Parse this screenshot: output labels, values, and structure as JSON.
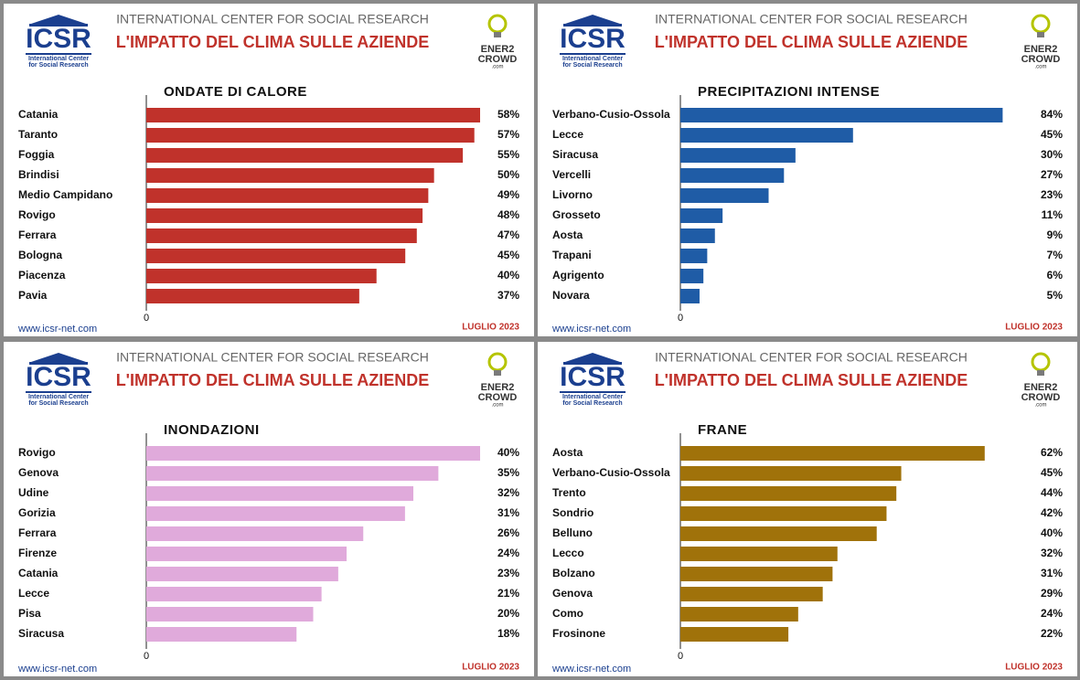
{
  "chart_data": [
    {
      "type": "barh",
      "organization": "INTERNATIONAL CENTER FOR SOCIAL RESEARCH",
      "title": "L'IMPATTO DEL CLIMA SULLE AZIENDE",
      "subtitle": "ONDATE DI CALORE",
      "logo_left": {
        "name": "ICSR",
        "line1": "International Center",
        "line2": "for Social Research"
      },
      "logo_right": {
        "line1": "ENER2",
        "line2": "CROWD",
        "line3": ".com"
      },
      "website": "www.icsr-net.com",
      "date": "LUGLIO 2023",
      "color": "#c0322b",
      "categories": [
        "Catania",
        "Taranto",
        "Foggia",
        "Brindisi",
        "Medio Campidano",
        "Rovigo",
        "Ferrara",
        "Bologna",
        "Piacenza",
        "Pavia"
      ],
      "values": [
        58,
        57,
        55,
        50,
        49,
        48,
        47,
        45,
        40,
        37
      ],
      "value_labels": [
        "58%",
        "57%",
        "55%",
        "50%",
        "49%",
        "48%",
        "47%",
        "45%",
        "40%",
        "37%"
      ],
      "xlim": [
        0,
        58
      ],
      "xticks": [
        0
      ]
    },
    {
      "type": "barh",
      "organization": "INTERNATIONAL CENTER FOR SOCIAL RESEARCH",
      "title": "L'IMPATTO DEL CLIMA SULLE AZIENDE",
      "subtitle": "PRECIPITAZIONI INTENSE",
      "logo_left": {
        "name": "ICSR",
        "line1": "International Center",
        "line2": "for Social Research"
      },
      "logo_right": {
        "line1": "ENER2",
        "line2": "CROWD",
        "line3": ".com"
      },
      "website": "www.icsr-net.com",
      "date": "LUGLIO 2023",
      "color": "#1f5ca6",
      "categories": [
        "Verbano-Cusio-Ossola",
        "Lecce",
        "Siracusa",
        "Vercelli",
        "Livorno",
        "Grosseto",
        "Aosta",
        "Trapani",
        "Agrigento",
        "Novara"
      ],
      "values": [
        84,
        45,
        30,
        27,
        23,
        11,
        9,
        7,
        6,
        5
      ],
      "value_labels": [
        "84%",
        "45%",
        "30%",
        "27%",
        "23%",
        "11%",
        "9%",
        "7%",
        "6%",
        "5%"
      ],
      "xlim": [
        0,
        87
      ],
      "xticks": [
        0
      ]
    },
    {
      "type": "barh",
      "organization": "INTERNATIONAL CENTER FOR SOCIAL RESEARCH",
      "title": "L'IMPATTO DEL CLIMA SULLE AZIENDE",
      "subtitle": "INONDAZIONI",
      "logo_left": {
        "name": "ICSR",
        "line1": "International Center",
        "line2": "for Social Research"
      },
      "logo_right": {
        "line1": "ENER2",
        "line2": "CROWD",
        "line3": ".com"
      },
      "website": "www.icsr-net.com",
      "date": "LUGLIO 2023",
      "color": "#e0aadb",
      "categories": [
        "Rovigo",
        "Genova",
        "Udine",
        "Gorizia",
        "Ferrara",
        "Firenze",
        "Catania",
        "Lecce",
        "Pisa",
        "Siracusa"
      ],
      "values": [
        40,
        35,
        32,
        31,
        26,
        24,
        23,
        21,
        20,
        18
      ],
      "value_labels": [
        "40%",
        "35%",
        "32%",
        "31%",
        "26%",
        "24%",
        "23%",
        "21%",
        "20%",
        "18%"
      ],
      "xlim": [
        0,
        40
      ],
      "xticks": [
        0
      ]
    },
    {
      "type": "barh",
      "organization": "INTERNATIONAL CENTER FOR SOCIAL RESEARCH",
      "title": "L'IMPATTO DEL CLIMA SULLE AZIENDE",
      "subtitle": "FRANE",
      "logo_left": {
        "name": "ICSR",
        "line1": "International Center",
        "line2": "for Social Research"
      },
      "logo_right": {
        "line1": "ENER2",
        "line2": "CROWD",
        "line3": ".com"
      },
      "website": "www.icsr-net.com",
      "date": "LUGLIO 2023",
      "color": "#a0720a",
      "categories": [
        "Aosta",
        "Verbano-Cusio-Ossola",
        "Trento",
        "Sondrio",
        "Belluno",
        "Lecco",
        "Bolzano",
        "Genova",
        "Como",
        "Frosinone"
      ],
      "values": [
        62,
        45,
        44,
        42,
        40,
        32,
        31,
        29,
        24,
        22
      ],
      "value_labels": [
        "62%",
        "45%",
        "44%",
        "42%",
        "40%",
        "32%",
        "31%",
        "29%",
        "24%",
        "22%"
      ],
      "xlim": [
        0,
        68
      ],
      "xticks": [
        0
      ]
    }
  ]
}
